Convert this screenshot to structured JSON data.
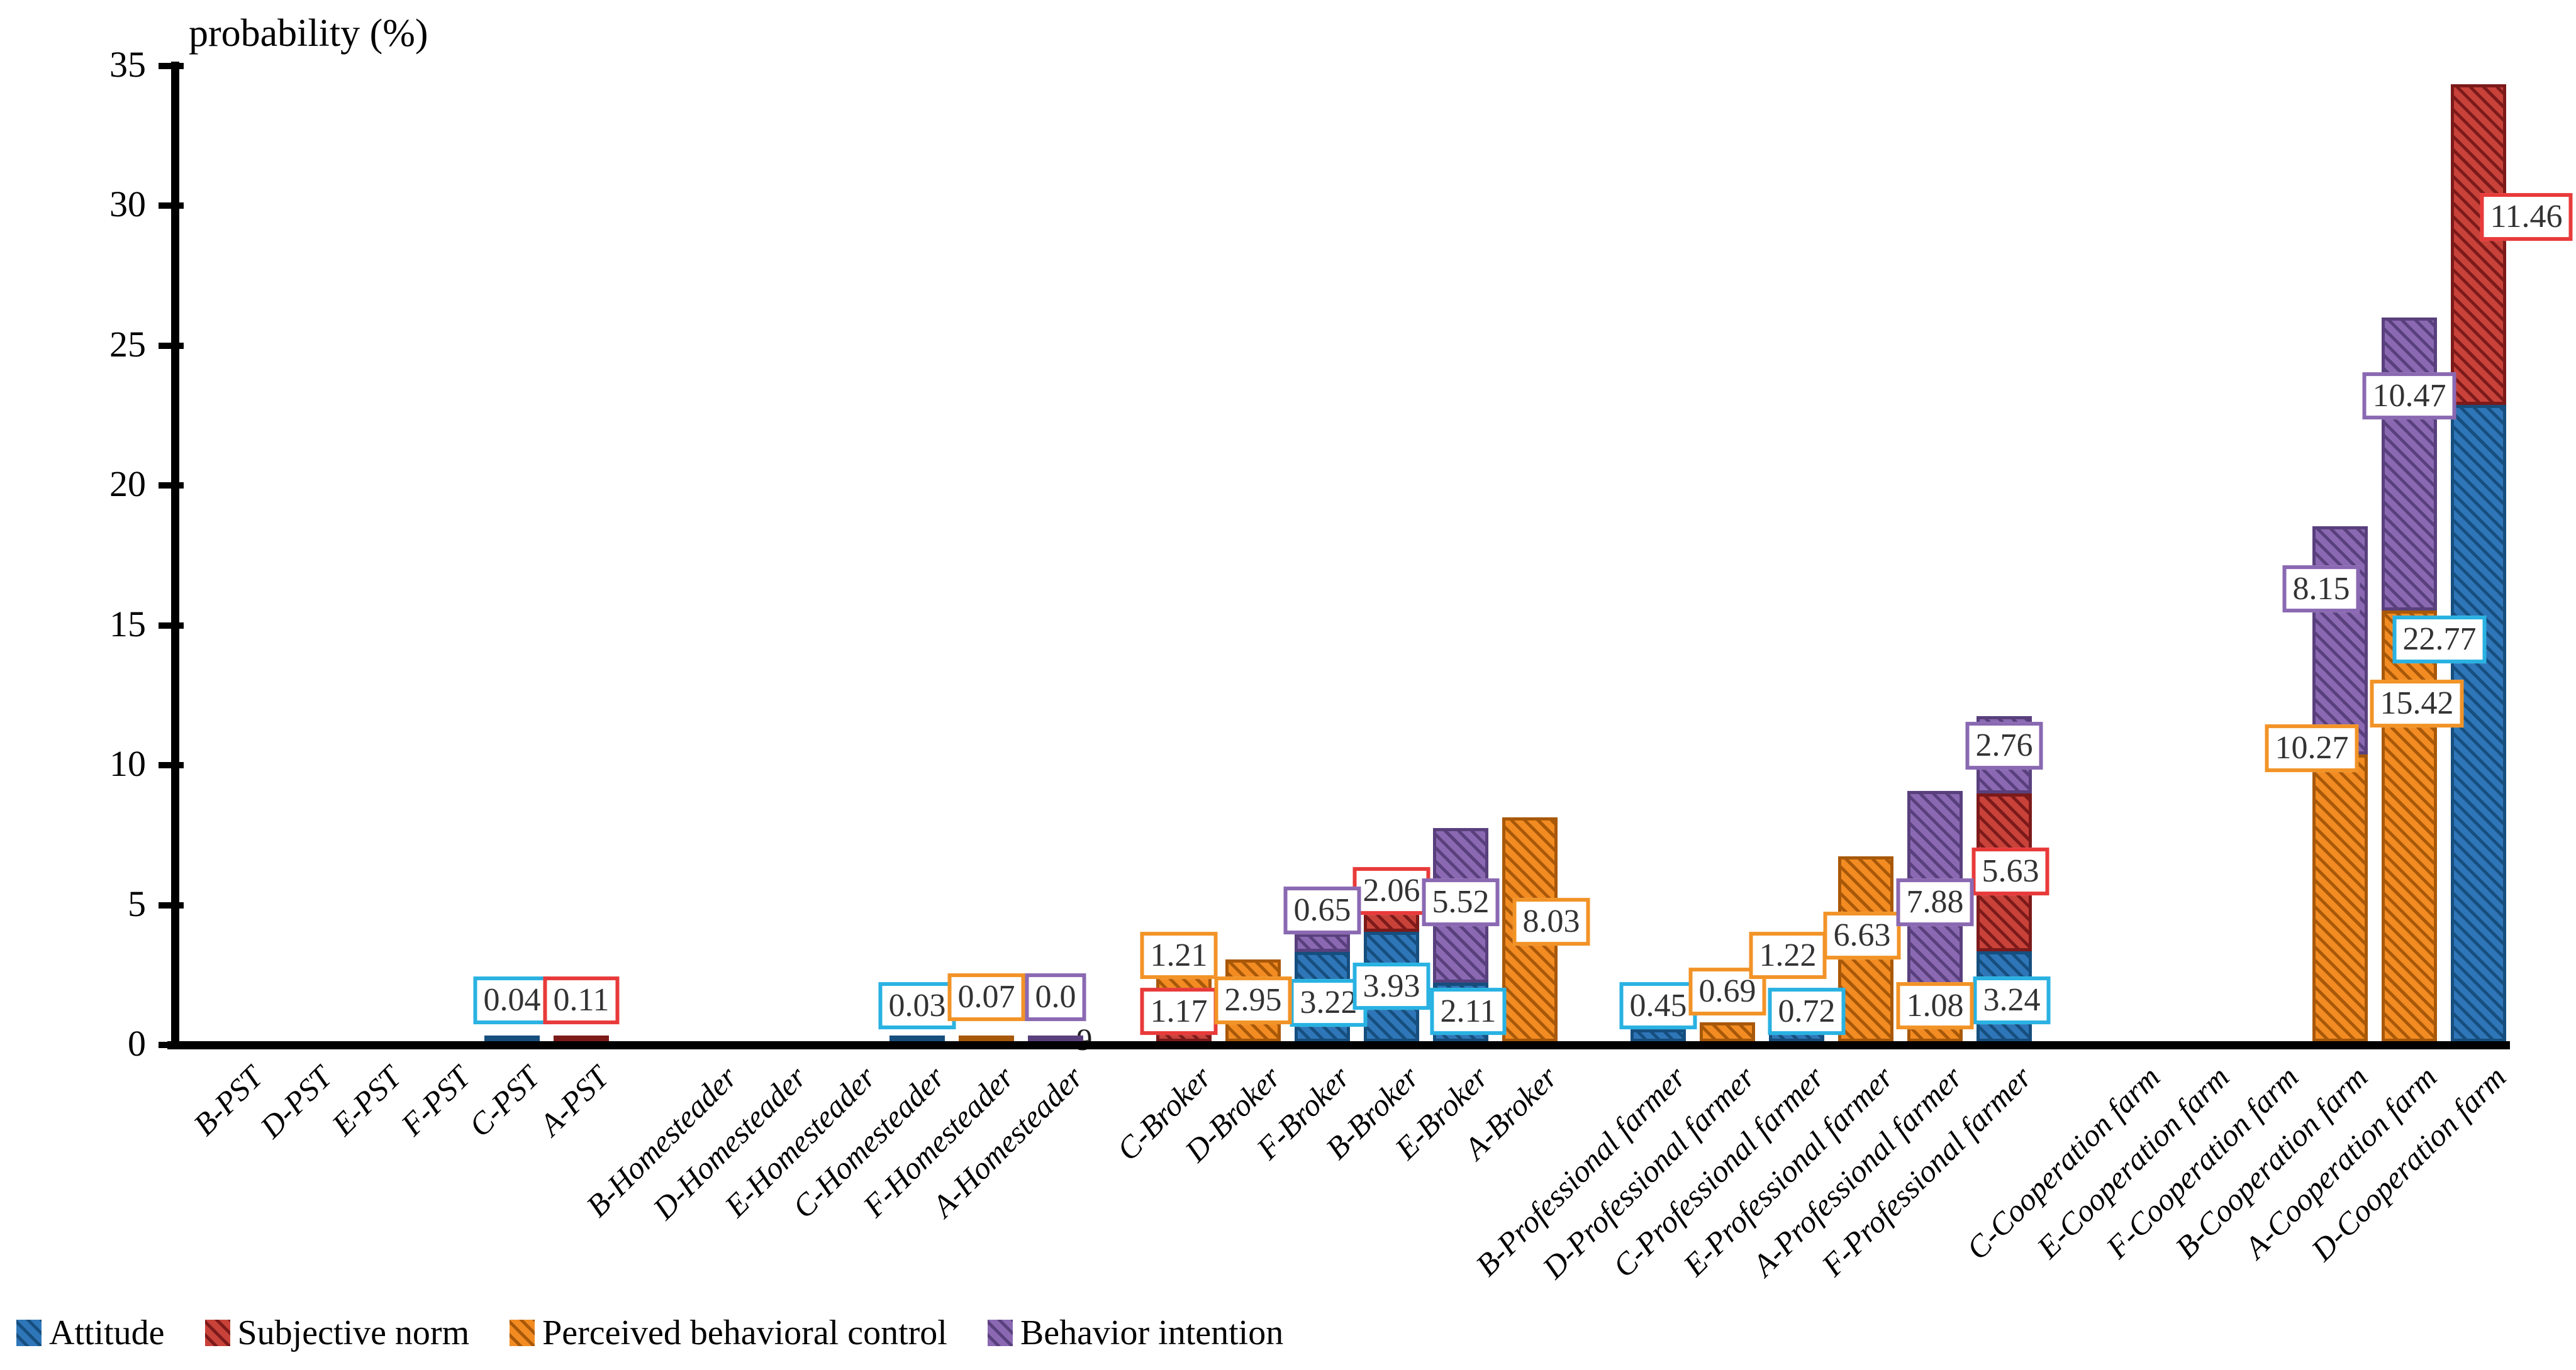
{
  "title": "probability (%)",
  "legend": [
    {
      "key": "attitude",
      "label": "Attitude"
    },
    {
      "key": "subjective",
      "label": "Subjective norm"
    },
    {
      "key": "pbc",
      "label": "Perceived behavioral control"
    },
    {
      "key": "bi",
      "label": "Behavior intention"
    }
  ],
  "colors": {
    "attitude": {
      "fill": "#2e76b8",
      "hatch": "#164e7e",
      "label_border": "#29b2e2"
    },
    "subjective": {
      "fill": "#c8423a",
      "hatch": "#7c1a1a",
      "label_border": "#e83a3a"
    },
    "pbc": {
      "fill": "#f28b21",
      "hatch": "#a85809",
      "label_border": "#f29327"
    },
    "bi": {
      "fill": "#8a69b2",
      "hatch": "#59407d",
      "label_border": "#8a69b2"
    },
    "axis": "#000000",
    "background": "#ffffff"
  },
  "chart_data": {
    "type": "bar",
    "stacked": true,
    "ylabel": "probability (%)",
    "ylim": [
      0,
      35
    ],
    "yticks": [
      0,
      5,
      10,
      15,
      20,
      25,
      30,
      35
    ],
    "grid": false,
    "legend_position": "bottom-left",
    "series_names": [
      "Attitude",
      "Subjective norm",
      "Perceived behavioral control",
      "Behavior intention"
    ],
    "series_keys": [
      "attitude",
      "subjective",
      "pbc",
      "bi"
    ],
    "group_size": 6,
    "categories": [
      {
        "label": "B-PST",
        "segments": []
      },
      {
        "label": "D-PST",
        "segments": []
      },
      {
        "label": "E-PST",
        "segments": []
      },
      {
        "label": "F-PST",
        "segments": []
      },
      {
        "label": "C-PST",
        "segments": [
          {
            "series": "attitude",
            "value": 0.04,
            "display": "0.04",
            "label_y": 1.6,
            "dx": 0
          }
        ]
      },
      {
        "label": "A-PST",
        "segments": [
          {
            "series": "subjective",
            "value": 0.11,
            "display": "0.11",
            "label_y": 1.6,
            "dx": 0
          }
        ]
      },
      {
        "label": "B-Homesteader",
        "segments": []
      },
      {
        "label": "D-Homesteader",
        "segments": []
      },
      {
        "label": "E-Homesteader",
        "segments": []
      },
      {
        "label": "C-Homesteader",
        "segments": [
          {
            "series": "attitude",
            "value": 0.03,
            "display": "0.03",
            "label_y": 1.4,
            "dx": 0
          }
        ]
      },
      {
        "label": "F-Homesteader",
        "segments": [
          {
            "series": "pbc",
            "value": 0.07,
            "display": "0.07",
            "label_y": 1.7,
            "dx": 0
          }
        ]
      },
      {
        "label": "A-Homesteader",
        "segments": [
          {
            "series": "bi",
            "value": 0.09,
            "display": "0.0",
            "label_y": 1.7,
            "dx": 0,
            "spill": {
              "text": "9",
              "y": 0.2,
              "dx": 46
            }
          }
        ]
      },
      {
        "label": "C-Broker",
        "segments": [
          {
            "series": "subjective",
            "value": 1.17,
            "display": "1.17",
            "label_y": 1.2,
            "dx": -8
          },
          {
            "series": "pbc",
            "value": 1.21,
            "display": "1.21",
            "label_y": 3.2,
            "dx": -8
          }
        ]
      },
      {
        "label": "D-Broker",
        "segments": [
          {
            "series": "pbc",
            "value": 2.95,
            "display": "2.95",
            "label_y": 1.6,
            "dx": 0
          }
        ]
      },
      {
        "label": "F-Broker",
        "segments": [
          {
            "series": "attitude",
            "value": 3.22,
            "display": "3.22",
            "label_y": 1.5,
            "dx": 10
          },
          {
            "series": "bi",
            "value": 0.65,
            "display": "0.65",
            "label_y": 4.8,
            "dx": 0
          }
        ]
      },
      {
        "label": "B-Broker",
        "segments": [
          {
            "series": "attitude",
            "value": 3.93,
            "display": "3.93",
            "label_y": 2.1,
            "dx": 0
          },
          {
            "series": "subjective",
            "value": 2.06,
            "display": "2.06",
            "label_y": 5.5,
            "dx": 0
          }
        ]
      },
      {
        "label": "E-Broker",
        "segments": [
          {
            "series": "attitude",
            "value": 2.11,
            "display": "2.11",
            "label_y": 1.2,
            "dx": 12
          },
          {
            "series": "bi",
            "value": 5.52,
            "display": "5.52",
            "label_y": 5.1,
            "dx": 0
          }
        ]
      },
      {
        "label": "A-Broker",
        "segments": [
          {
            "series": "pbc",
            "value": 8.03,
            "display": "8.03",
            "label_y": 4.4,
            "dx": 34
          }
        ]
      },
      {
        "label": "B-Professional farmer",
        "segments": [
          {
            "series": "attitude",
            "value": 0.45,
            "display": "0.45",
            "label_y": 1.4,
            "dx": 0
          }
        ]
      },
      {
        "label": "D-Professional farmer",
        "segments": [
          {
            "series": "pbc",
            "value": 0.69,
            "display": "0.69",
            "label_y": 1.9,
            "dx": 0
          }
        ]
      },
      {
        "label": "C-Professional farmer",
        "segments": [
          {
            "series": "attitude",
            "value": 0.72,
            "display": "0.72",
            "label_y": 1.2,
            "dx": 16
          },
          {
            "series": "pbc",
            "value": 1.22,
            "display": "1.22",
            "label_y": 3.2,
            "dx": -14
          }
        ]
      },
      {
        "label": "E-Professional farmer",
        "segments": [
          {
            "series": "pbc",
            "value": 6.63,
            "display": "6.63",
            "label_y": 3.9,
            "dx": -6
          }
        ]
      },
      {
        "label": "A-Professional farmer",
        "segments": [
          {
            "series": "pbc",
            "value": 1.08,
            "display": "1.08",
            "label_y": 1.4,
            "dx": 0
          },
          {
            "series": "bi",
            "value": 7.88,
            "display": "7.88",
            "label_y": 5.1,
            "dx": 0
          }
        ]
      },
      {
        "label": "F-Professional farmer",
        "segments": [
          {
            "series": "attitude",
            "value": 3.24,
            "display": "3.24",
            "label_y": 1.6,
            "dx": 12
          },
          {
            "series": "subjective",
            "value": 5.63,
            "display": "5.63",
            "label_y": 6.2,
            "dx": 10
          },
          {
            "series": "bi",
            "value": 2.76,
            "display": "2.76",
            "label_y": 10.7,
            "dx": 0
          }
        ]
      },
      {
        "label": "C-Cooperation farm",
        "segments": []
      },
      {
        "label": "E-Cooperation farm",
        "segments": []
      },
      {
        "label": "F-Cooperation farm",
        "segments": []
      },
      {
        "label": "B-Cooperation farm",
        "segments": [
          {
            "series": "pbc",
            "value": 10.27,
            "display": "10.27",
            "label_y": 10.6,
            "dx": -45
          },
          {
            "series": "bi",
            "value": 8.15,
            "display": "8.15",
            "label_y": 16.3,
            "dx": -30
          }
        ]
      },
      {
        "label": "A-Cooperation farm",
        "segments": [
          {
            "series": "pbc",
            "value": 15.42,
            "display": "15.42",
            "label_y": 12.2,
            "dx": 12
          },
          {
            "series": "bi",
            "value": 10.47,
            "display": "10.47",
            "label_y": 23.2,
            "dx": 0
          }
        ]
      },
      {
        "label": "D-Cooperation farm",
        "segments": [
          {
            "series": "attitude",
            "value": 22.77,
            "display": "22.77",
            "label_y": 14.5,
            "dx": -62
          },
          {
            "series": "subjective",
            "value": 11.46,
            "display": "11.46",
            "label_y": 29.6,
            "dx": 76
          }
        ]
      }
    ]
  }
}
